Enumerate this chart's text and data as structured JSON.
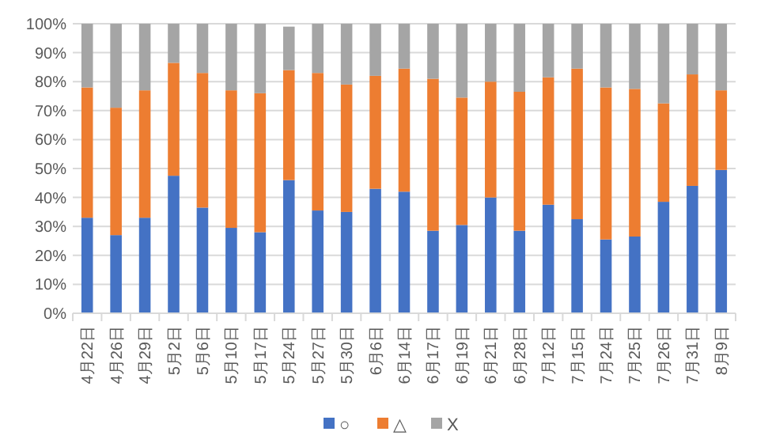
{
  "chart_data": {
    "type": "bar",
    "stacked": true,
    "categories": [
      "4月22日",
      "4月26日",
      "4月29日",
      "5月2日",
      "5月6日",
      "5月10日",
      "5月17日",
      "5月24日",
      "5月27日",
      "5月30日",
      "6月6日",
      "6月14日",
      "6月17日",
      "6月19日",
      "6月21日",
      "6月28日",
      "7月12日",
      "7月15日",
      "7月24日",
      "7月25日",
      "7月26日",
      "7月31日",
      "8月9日"
    ],
    "series": [
      {
        "name": "○",
        "color": "#4472c4",
        "values": [
          33,
          27,
          33,
          47.5,
          36.5,
          29.5,
          28,
          46,
          35.5,
          35,
          43,
          42,
          28.5,
          30.5,
          40,
          28.5,
          37.5,
          32.5,
          25.5,
          26.5,
          38.5,
          44,
          49.5
        ]
      },
      {
        "name": "△",
        "color": "#ed7d31",
        "values": [
          45,
          44,
          44,
          39,
          46.5,
          47.5,
          48,
          38,
          47.5,
          44,
          39,
          42.5,
          52.5,
          44,
          40,
          48,
          44,
          52,
          52.5,
          51,
          34,
          38.5,
          27.5
        ]
      },
      {
        "name": "X",
        "color": "#a5a5a5",
        "values": [
          22,
          29,
          23,
          13.5,
          17,
          23,
          24,
          15,
          17,
          21,
          18,
          15.5,
          19,
          25.5,
          20,
          23.5,
          18.5,
          15.5,
          22,
          22.5,
          27.5,
          17.5,
          23
        ]
      }
    ],
    "ylim": [
      0,
      100
    ],
    "yticks": [
      {
        "value": 0,
        "label": "0%"
      },
      {
        "value": 10,
        "label": "10%"
      },
      {
        "value": 20,
        "label": "20%"
      },
      {
        "value": 30,
        "label": "30%"
      },
      {
        "value": 40,
        "label": "40%"
      },
      {
        "value": 50,
        "label": "50%"
      },
      {
        "value": 60,
        "label": "60%"
      },
      {
        "value": 70,
        "label": "70%"
      },
      {
        "value": 80,
        "label": "80%"
      },
      {
        "value": 90,
        "label": "90%"
      },
      {
        "value": 100,
        "label": "100%"
      }
    ],
    "grid": "y",
    "legend": "bottom"
  }
}
